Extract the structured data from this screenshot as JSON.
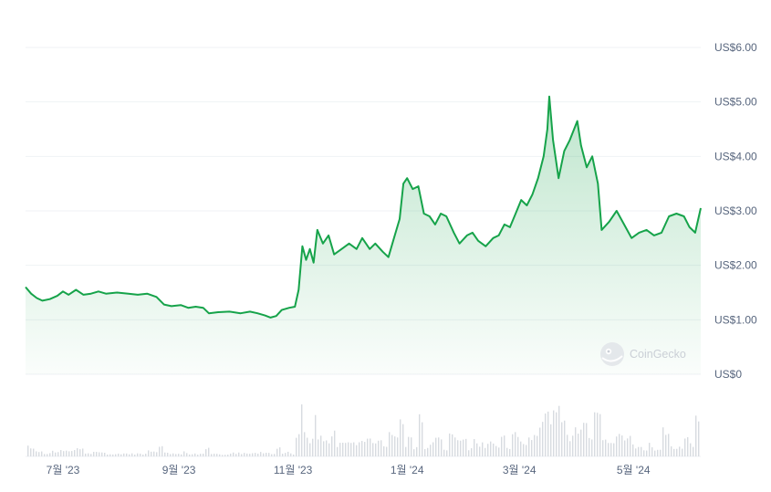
{
  "chart_data": {
    "type": "area",
    "title": "",
    "xlabel": "",
    "ylabel": "",
    "ylim": [
      0,
      6
    ],
    "y_ticks": [
      {
        "value": 0,
        "label": "US$0"
      },
      {
        "value": 1,
        "label": "US$1.00"
      },
      {
        "value": 2,
        "label": "US$2.00"
      },
      {
        "value": 3,
        "label": "US$3.00"
      },
      {
        "value": 4,
        "label": "US$4.00"
      },
      {
        "value": 5,
        "label": "US$5.00"
      },
      {
        "value": 6,
        "label": "US$6.00"
      }
    ],
    "x_range": [
      "2023-06-11",
      "2024-06-06"
    ],
    "x_ticks": [
      {
        "date": "2023-07-01",
        "label": "7월 '23"
      },
      {
        "date": "2023-09-01",
        "label": "9월 '23"
      },
      {
        "date": "2023-11-01",
        "label": "11월 '23"
      },
      {
        "date": "2024-01-01",
        "label": "1월 '24"
      },
      {
        "date": "2024-03-01",
        "label": "3월 '24"
      },
      {
        "date": "2024-05-01",
        "label": "5월 '24"
      }
    ],
    "grid": true,
    "legend": "none",
    "colors": {
      "line": "#16a34a",
      "area_top": "#16a34a",
      "volume": "#d7dbe0",
      "grid": "#eff2f5",
      "text": "#58667e"
    },
    "series": [
      {
        "values": [
          [
            "2023-06-11",
            1.6
          ],
          [
            "2023-06-14",
            1.48
          ],
          [
            "2023-06-17",
            1.4
          ],
          [
            "2023-06-20",
            1.35
          ],
          [
            "2023-06-24",
            1.38
          ],
          [
            "2023-06-28",
            1.44
          ],
          [
            "2023-07-01",
            1.52
          ],
          [
            "2023-07-04",
            1.46
          ],
          [
            "2023-07-08",
            1.55
          ],
          [
            "2023-07-12",
            1.46
          ],
          [
            "2023-07-16",
            1.48
          ],
          [
            "2023-07-20",
            1.52
          ],
          [
            "2023-07-24",
            1.48
          ],
          [
            "2023-07-30",
            1.5
          ],
          [
            "2023-08-05",
            1.48
          ],
          [
            "2023-08-10",
            1.46
          ],
          [
            "2023-08-15",
            1.48
          ],
          [
            "2023-08-20",
            1.42
          ],
          [
            "2023-08-24",
            1.28
          ],
          [
            "2023-08-28",
            1.25
          ],
          [
            "2023-09-02",
            1.27
          ],
          [
            "2023-09-06",
            1.22
          ],
          [
            "2023-09-10",
            1.24
          ],
          [
            "2023-09-14",
            1.22
          ],
          [
            "2023-09-17",
            1.12
          ],
          [
            "2023-09-22",
            1.14
          ],
          [
            "2023-09-28",
            1.15
          ],
          [
            "2023-10-04",
            1.12
          ],
          [
            "2023-10-09",
            1.15
          ],
          [
            "2023-10-13",
            1.12
          ],
          [
            "2023-10-17",
            1.08
          ],
          [
            "2023-10-20",
            1.04
          ],
          [
            "2023-10-23",
            1.07
          ],
          [
            "2023-10-26",
            1.18
          ],
          [
            "2023-10-30",
            1.22
          ],
          [
            "2023-11-02",
            1.24
          ],
          [
            "2023-11-04",
            1.55
          ],
          [
            "2023-11-06",
            2.35
          ],
          [
            "2023-11-08",
            2.1
          ],
          [
            "2023-11-10",
            2.3
          ],
          [
            "2023-11-12",
            2.05
          ],
          [
            "2023-11-14",
            2.65
          ],
          [
            "2023-11-17",
            2.4
          ],
          [
            "2023-11-20",
            2.55
          ],
          [
            "2023-11-23",
            2.2
          ],
          [
            "2023-11-27",
            2.3
          ],
          [
            "2023-12-01",
            2.4
          ],
          [
            "2023-12-05",
            2.3
          ],
          [
            "2023-12-08",
            2.5
          ],
          [
            "2023-12-12",
            2.3
          ],
          [
            "2023-12-15",
            2.4
          ],
          [
            "2023-12-19",
            2.25
          ],
          [
            "2023-12-22",
            2.15
          ],
          [
            "2023-12-25",
            2.5
          ],
          [
            "2023-12-28",
            2.85
          ],
          [
            "2023-12-30",
            3.5
          ],
          [
            "2024-01-01",
            3.6
          ],
          [
            "2024-01-04",
            3.4
          ],
          [
            "2024-01-07",
            3.45
          ],
          [
            "2024-01-10",
            2.95
          ],
          [
            "2024-01-13",
            2.9
          ],
          [
            "2024-01-16",
            2.75
          ],
          [
            "2024-01-19",
            2.95
          ],
          [
            "2024-01-22",
            2.9
          ],
          [
            "2024-01-26",
            2.6
          ],
          [
            "2024-01-29",
            2.4
          ],
          [
            "2024-02-02",
            2.55
          ],
          [
            "2024-02-05",
            2.6
          ],
          [
            "2024-02-08",
            2.45
          ],
          [
            "2024-02-12",
            2.35
          ],
          [
            "2024-02-16",
            2.5
          ],
          [
            "2024-02-19",
            2.55
          ],
          [
            "2024-02-22",
            2.75
          ],
          [
            "2024-02-25",
            2.7
          ],
          [
            "2024-02-28",
            2.95
          ],
          [
            "2024-03-02",
            3.2
          ],
          [
            "2024-03-05",
            3.1
          ],
          [
            "2024-03-08",
            3.3
          ],
          [
            "2024-03-11",
            3.6
          ],
          [
            "2024-03-14",
            4.0
          ],
          [
            "2024-03-16",
            4.5
          ],
          [
            "2024-03-17",
            5.1
          ],
          [
            "2024-03-19",
            4.3
          ],
          [
            "2024-03-22",
            3.6
          ],
          [
            "2024-03-25",
            4.1
          ],
          [
            "2024-03-28",
            4.3
          ],
          [
            "2024-04-01",
            4.65
          ],
          [
            "2024-04-03",
            4.2
          ],
          [
            "2024-04-06",
            3.8
          ],
          [
            "2024-04-09",
            4.0
          ],
          [
            "2024-04-12",
            3.5
          ],
          [
            "2024-04-14",
            2.65
          ],
          [
            "2024-04-18",
            2.8
          ],
          [
            "2024-04-22",
            3.0
          ],
          [
            "2024-04-26",
            2.75
          ],
          [
            "2024-04-30",
            2.5
          ],
          [
            "2024-05-04",
            2.6
          ],
          [
            "2024-05-08",
            2.65
          ],
          [
            "2024-05-12",
            2.55
          ],
          [
            "2024-05-16",
            2.6
          ],
          [
            "2024-05-20",
            2.9
          ],
          [
            "2024-05-24",
            2.95
          ],
          [
            "2024-05-28",
            2.9
          ],
          [
            "2024-05-31",
            2.7
          ],
          [
            "2024-06-03",
            2.6
          ],
          [
            "2024-06-06",
            3.05
          ]
        ]
      }
    ]
  },
  "watermark": {
    "text": "CoinGecko",
    "icon": "coingecko-logo"
  }
}
